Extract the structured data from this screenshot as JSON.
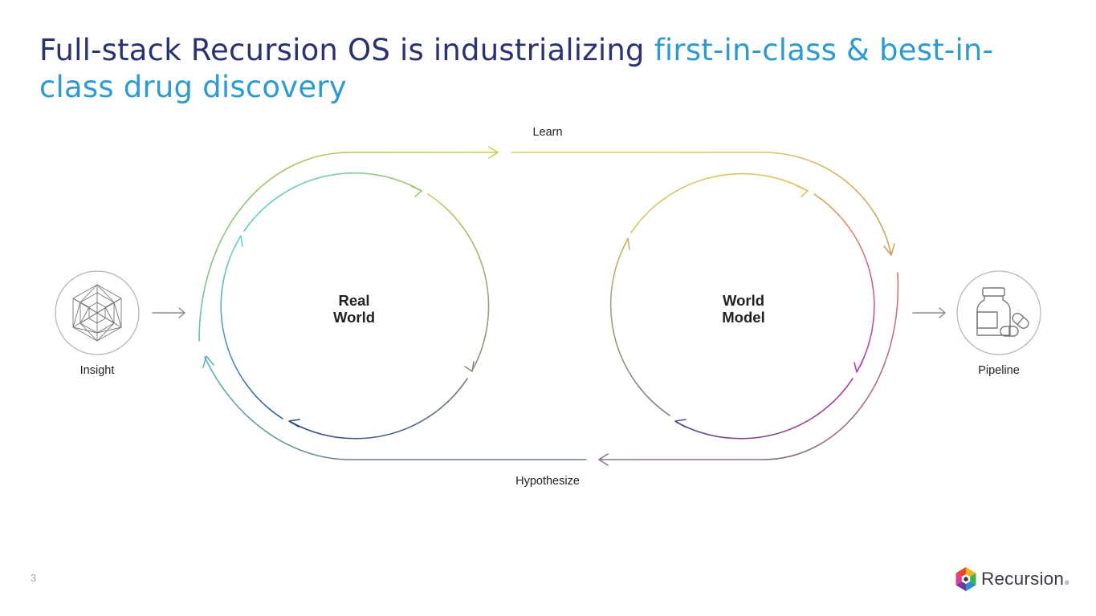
{
  "slide": {
    "title_part1": "Full-stack Recursion OS is industrializing ",
    "title_part2": "first-in-class & best-in-class drug ",
    "title_part3": "discovery",
    "page_number": "3"
  },
  "diagram": {
    "learn_label": "Learn",
    "hypothesize_label": "Hypothesize",
    "real_world_line1": "Real",
    "real_world_line2": "World",
    "world_model_line1": "World",
    "world_model_line2": "Model",
    "insight_label": "Insight",
    "pipeline_label": "Pipeline",
    "insight_icon": "geodesic-cube-icon",
    "pipeline_icon": "medicine-bottle-and-pills-icon"
  },
  "brand": {
    "name": "Recursion",
    "registered_mark": "®",
    "logo_colors": [
      "#e8452c",
      "#f7b21b",
      "#3cb44a",
      "#2b8fd6",
      "#6a3d9a",
      "#e23b8f"
    ]
  }
}
